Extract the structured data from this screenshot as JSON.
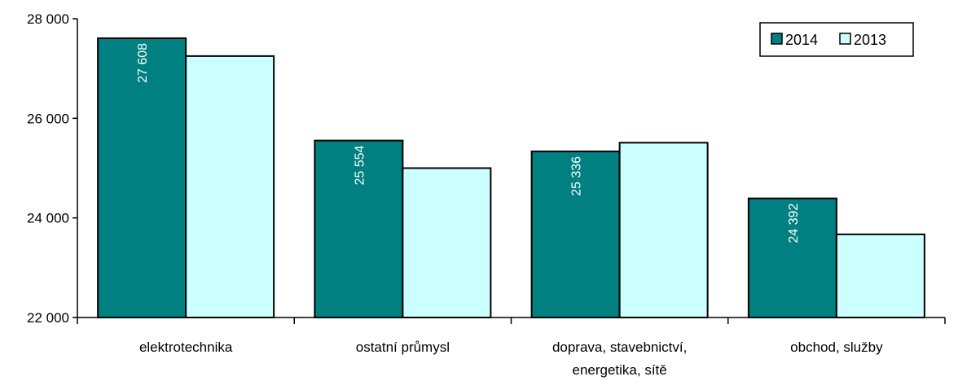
{
  "chart_data": {
    "type": "bar",
    "categories": [
      [
        "elektrotechnika"
      ],
      [
        "ostatní průmysl"
      ],
      [
        "doprava, stavebnictví,",
        "energetika, sítě"
      ],
      [
        "obchod, služby"
      ]
    ],
    "series": [
      {
        "name": "2014",
        "color": "#008080",
        "values": [
          27608,
          25554,
          25336,
          24392
        ],
        "data_labels": [
          "27 608",
          "25 554",
          "25 336",
          "24 392"
        ]
      },
      {
        "name": "2013",
        "color": "#ccffff",
        "values": [
          27250,
          25000,
          25510,
          23670
        ]
      }
    ],
    "ylim": [
      22000,
      28000
    ],
    "yticks": [
      22000,
      24000,
      26000,
      28000
    ],
    "ytick_labels": [
      "22 000",
      "24 000",
      "26 000",
      "28 000"
    ],
    "legend_position": "top-right",
    "grid": false
  }
}
